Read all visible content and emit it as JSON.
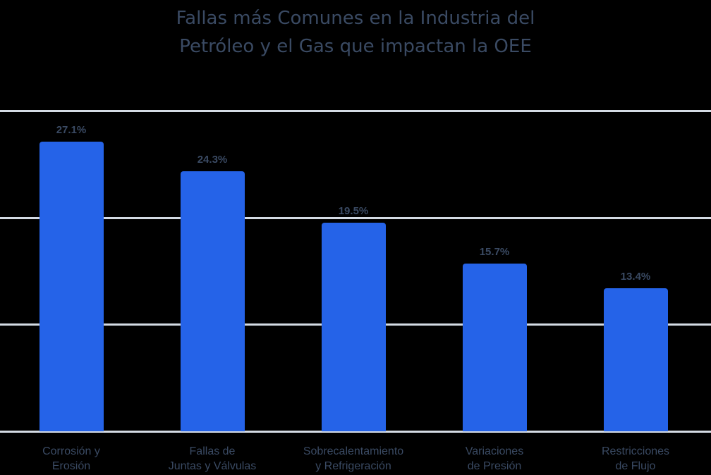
{
  "chart_data": {
    "type": "bar",
    "title": "Fallas más Comunes en la Industria del Petróleo y el Gas que impactan la OEE",
    "title_lines": [
      "Fallas más Comunes en la Industria del",
      "Petróleo y el Gas que impactan la OEE"
    ],
    "categories": [
      "Corrosión y Erosión",
      "Fallas de Juntas y Válvulas",
      "Sobrecalentamiento y Refrigeración",
      "Variaciones de Presión",
      "Restricciones de Flujo"
    ],
    "category_lines": [
      [
        "Corrosión y",
        "Erosión"
      ],
      [
        "Fallas de",
        "Juntas y Válvulas"
      ],
      [
        "Sobrecalentamiento",
        "y Refrigeración"
      ],
      [
        "Variaciones",
        "de Presión"
      ],
      [
        "Restricciones",
        "de Flujo"
      ]
    ],
    "values": [
      27.1,
      24.3,
      19.5,
      15.7,
      13.4
    ],
    "value_labels": [
      "27.1%",
      "24.3%",
      "19.5%",
      "15.7%",
      "13.4%"
    ],
    "xlabel": "",
    "ylabel": "",
    "ylim": [
      0,
      30
    ],
    "gridlines": [
      0,
      10,
      20,
      30
    ],
    "grid": true,
    "legend": "none",
    "colors": {
      "bar": "#2563e8",
      "text": "#3a4a63",
      "grid": "#d4dbe4",
      "background": "#000000"
    }
  }
}
